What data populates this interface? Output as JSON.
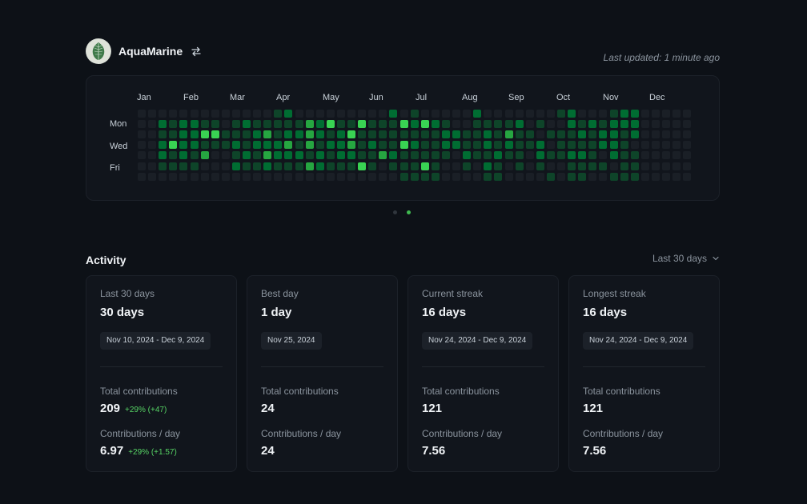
{
  "header": {
    "username": "AquaMarine",
    "swap_icon": "swap-arrows-icon",
    "last_updated": "Last updated: 1 minute ago"
  },
  "heatmap": {
    "months": [
      "Jan",
      "Feb",
      "Mar",
      "Apr",
      "May",
      "Jun",
      "Jul",
      "Aug",
      "Sep",
      "Oct",
      "Nov",
      "Dec"
    ],
    "day_labels": [
      "Mon",
      "Wed",
      "Fri"
    ],
    "legend_levels": [
      "#1a1f26",
      "#0e4429",
      "#006d32",
      "#26a641",
      "#39d353"
    ],
    "weeks": [
      [
        0,
        0,
        0,
        0,
        0,
        0,
        0
      ],
      [
        0,
        0,
        0,
        0,
        0,
        0,
        0
      ],
      [
        0,
        2,
        1,
        2,
        2,
        1,
        0
      ],
      [
        0,
        1,
        1,
        4,
        1,
        1,
        0
      ],
      [
        0,
        2,
        2,
        2,
        2,
        1,
        0
      ],
      [
        0,
        2,
        2,
        2,
        1,
        1,
        0
      ],
      [
        0,
        1,
        4,
        1,
        3,
        0,
        0
      ],
      [
        0,
        1,
        4,
        1,
        0,
        0,
        0
      ],
      [
        0,
        0,
        1,
        1,
        0,
        0,
        0
      ],
      [
        0,
        1,
        1,
        2,
        1,
        2,
        0
      ],
      [
        0,
        2,
        1,
        1,
        2,
        1,
        0
      ],
      [
        0,
        1,
        2,
        2,
        1,
        1,
        0
      ],
      [
        0,
        1,
        3,
        2,
        3,
        2,
        0
      ],
      [
        1,
        1,
        1,
        2,
        2,
        1,
        0
      ],
      [
        2,
        1,
        2,
        3,
        2,
        1,
        0
      ],
      [
        0,
        1,
        2,
        1,
        2,
        1,
        0
      ],
      [
        0,
        3,
        3,
        3,
        1,
        3,
        0
      ],
      [
        0,
        2,
        2,
        1,
        2,
        2,
        0
      ],
      [
        0,
        4,
        1,
        2,
        1,
        1,
        0
      ],
      [
        0,
        1,
        2,
        2,
        2,
        1,
        0
      ],
      [
        0,
        1,
        4,
        3,
        2,
        1,
        0
      ],
      [
        0,
        4,
        1,
        1,
        1,
        4,
        0
      ],
      [
        0,
        1,
        1,
        2,
        1,
        1,
        0
      ],
      [
        0,
        1,
        1,
        1,
        3,
        0,
        0
      ],
      [
        2,
        1,
        1,
        1,
        2,
        1,
        0
      ],
      [
        0,
        4,
        1,
        4,
        1,
        1,
        1
      ],
      [
        1,
        2,
        1,
        2,
        1,
        1,
        1
      ],
      [
        0,
        4,
        1,
        1,
        1,
        4,
        1
      ],
      [
        0,
        2,
        1,
        1,
        1,
        1,
        1
      ],
      [
        0,
        1,
        2,
        2,
        1,
        0,
        0
      ],
      [
        0,
        0,
        2,
        2,
        0,
        0,
        0
      ],
      [
        0,
        0,
        1,
        1,
        2,
        1,
        0
      ],
      [
        2,
        1,
        1,
        1,
        1,
        0,
        0
      ],
      [
        0,
        1,
        2,
        2,
        1,
        2,
        1
      ],
      [
        0,
        1,
        1,
        1,
        2,
        1,
        1
      ],
      [
        0,
        1,
        3,
        2,
        1,
        0,
        0
      ],
      [
        0,
        2,
        1,
        1,
        1,
        1,
        0
      ],
      [
        0,
        0,
        1,
        1,
        0,
        0,
        0
      ],
      [
        0,
        1,
        0,
        2,
        2,
        1,
        0
      ],
      [
        0,
        0,
        1,
        0,
        1,
        0,
        1
      ],
      [
        1,
        0,
        1,
        1,
        1,
        0,
        0
      ],
      [
        2,
        2,
        1,
        1,
        2,
        1,
        1
      ],
      [
        0,
        1,
        2,
        1,
        2,
        1,
        1
      ],
      [
        0,
        2,
        1,
        1,
        1,
        1,
        0
      ],
      [
        0,
        1,
        2,
        2,
        0,
        1,
        0
      ],
      [
        1,
        2,
        2,
        2,
        2,
        0,
        1
      ],
      [
        2,
        2,
        1,
        1,
        1,
        1,
        1
      ],
      [
        2,
        2,
        2,
        0,
        1,
        1,
        1
      ],
      [
        0,
        0,
        0,
        0,
        0,
        0,
        0
      ],
      [
        0,
        0,
        0,
        0,
        0,
        0,
        0
      ],
      [
        0,
        0,
        0,
        0,
        0,
        0,
        0
      ],
      [
        0,
        0,
        0,
        0,
        0,
        0,
        0
      ],
      [
        0,
        0,
        0,
        0,
        0,
        0,
        0
      ]
    ],
    "pager": {
      "pages": 2,
      "active": 2
    }
  },
  "activity": {
    "title": "Activity",
    "range_label": "Last 30 days",
    "chevron_icon": "chevron-down-icon",
    "cards": [
      {
        "label": "Last 30 days",
        "value": "30 days",
        "date_range": "Nov 10, 2024 - Dec 9, 2024",
        "total_label": "Total contributions",
        "total": "209",
        "total_delta": "+29% (+47)",
        "per_day_label": "Contributions / day",
        "per_day": "6.97",
        "per_day_delta": "+29% (+1.57)"
      },
      {
        "label": "Best day",
        "value": "1 day",
        "date_range": "Nov 25, 2024",
        "total_label": "Total contributions",
        "total": "24",
        "total_delta": "",
        "per_day_label": "Contributions / day",
        "per_day": "24",
        "per_day_delta": ""
      },
      {
        "label": "Current streak",
        "value": "16 days",
        "date_range": "Nov 24, 2024 - Dec 9, 2024",
        "total_label": "Total contributions",
        "total": "121",
        "total_delta": "",
        "per_day_label": "Contributions / day",
        "per_day": "7.56",
        "per_day_delta": ""
      },
      {
        "label": "Longest streak",
        "value": "16 days",
        "date_range": "Nov 24, 2024 - Dec 9, 2024",
        "total_label": "Total contributions",
        "total": "121",
        "total_delta": "",
        "per_day_label": "Contributions / day",
        "per_day": "7.56",
        "per_day_delta": ""
      }
    ]
  }
}
